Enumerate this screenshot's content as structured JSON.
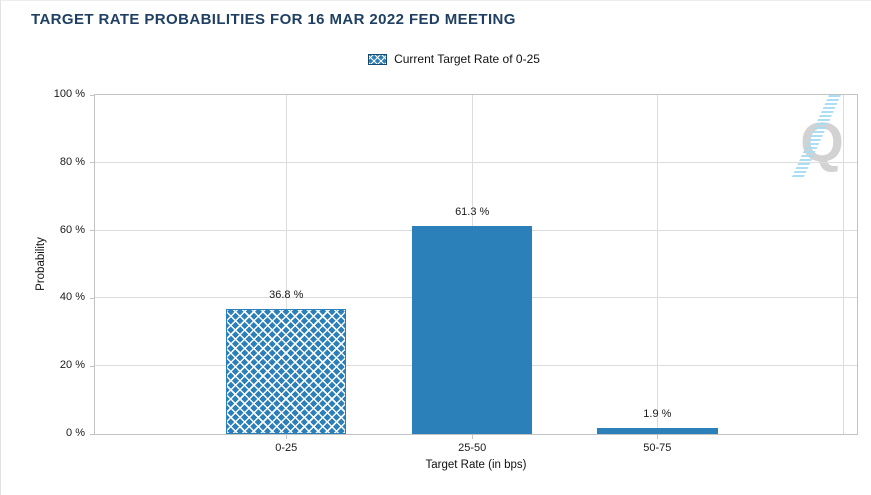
{
  "title": "TARGET RATE PROBABILITIES FOR 16 MAR 2022 FED MEETING",
  "legend": {
    "swatch_style": "crosshatch-blue",
    "label": "Current Target Rate of 0-25"
  },
  "watermark": {
    "letter": "Q"
  },
  "chart_data": {
    "type": "bar",
    "title": "TARGET RATE PROBABILITIES FOR 16 MAR 2022 FED MEETING",
    "categories": [
      "0-25",
      "25-50",
      "50-75"
    ],
    "values": [
      36.8,
      61.3,
      1.9
    ],
    "bar_labels": [
      "36.8 %",
      "61.3 %",
      "1.9 %"
    ],
    "bar_styles": [
      "crosshatch",
      "solid",
      "solid"
    ],
    "xlabel": "Target Rate (in bps)",
    "ylabel": "Probability",
    "ylim": [
      0,
      100
    ],
    "y_ticks": [
      "0 %",
      "20 %",
      "40 %",
      "60 %",
      "80 %",
      "100 %"
    ],
    "grid": true,
    "legend_position": "top-center",
    "colors": {
      "bar_fill": "#2b80b9",
      "title_text": "#1f4062",
      "gridline": "#dcdcdc",
      "plot_border": "#c3c3c3",
      "watermark_gray": "#d2d2d2",
      "watermark_blue": "#a8dcf2"
    }
  }
}
